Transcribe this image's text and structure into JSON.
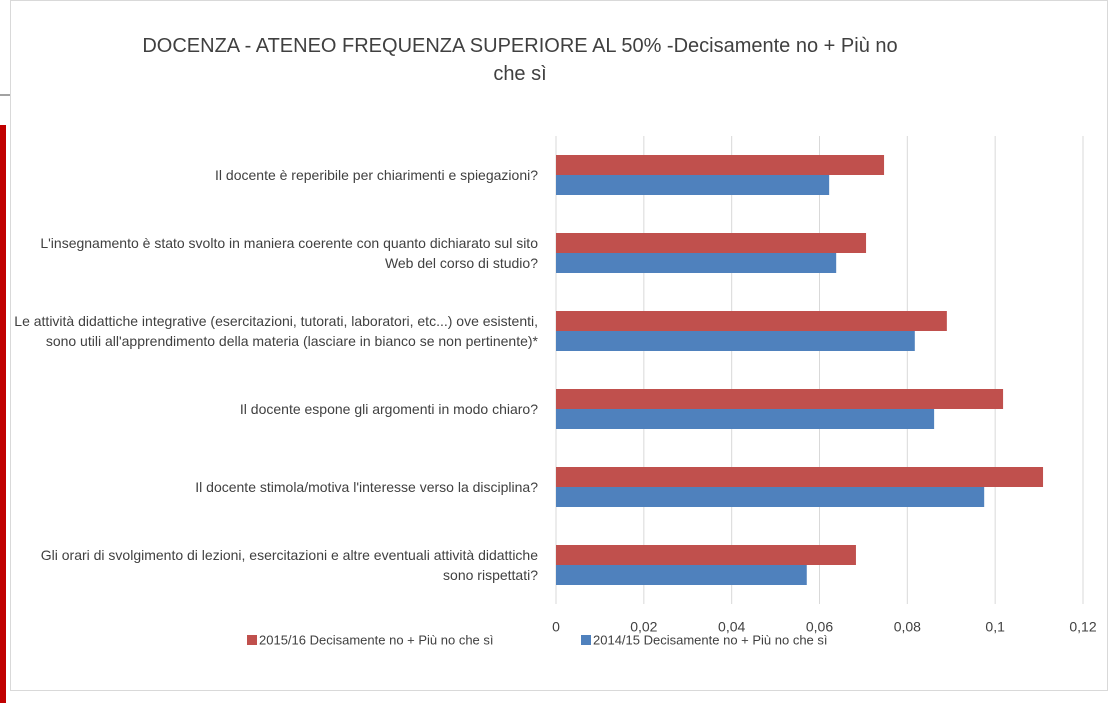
{
  "chart_data": {
    "type": "bar",
    "orientation": "horizontal",
    "title": "DOCENZA - ATENEO FREQUENZA SUPERIORE AL 50% -Decisamente no + Più no che sì",
    "categories": [
      "Il docente è reperibile per chiarimenti e spiegazioni?",
      "L'insegnamento è stato svolto in maniera coerente con quanto dichiarato sul sito Web del corso di studio?",
      "Le attività didattiche integrative (esercitazioni, tutorati, laboratori, etc...) ove esistenti, sono utili all'apprendimento della materia (lasciare in bianco se non pertinente)*",
      "Il docente espone gli argomenti in modo chiaro?",
      "Il docente stimola/motiva l'interesse verso la disciplina?",
      "Gli orari di svolgimento di lezioni, esercitazioni e altre eventuali attività didattiche sono rispettati?"
    ],
    "series": [
      {
        "name": "2015/16 Decisamente no + Più no che sì",
        "color": "#c0504d",
        "values": [
          0.0747,
          0.0706,
          0.089,
          0.1018,
          0.1109,
          0.0683
        ]
      },
      {
        "name": "2014/15 Decisamente no + Più no che sì",
        "color": "#4f81bd",
        "values": [
          0.0622,
          0.0638,
          0.0817,
          0.0861,
          0.0975,
          0.0571
        ]
      }
    ],
    "xlim": [
      0,
      0.12
    ],
    "xticks": [
      0,
      {
        "value": 0.02,
        "label": "0,02"
      },
      {
        "value": 0.04,
        "label": "0,04"
      },
      {
        "value": 0.06,
        "label": "0,06"
      },
      {
        "value": 0.08,
        "label": "0,08"
      },
      {
        "value": 0.1,
        "label": "0,1"
      },
      {
        "value": 0.12,
        "label": "0,12"
      }
    ],
    "grid": true,
    "legend": "bottom"
  }
}
